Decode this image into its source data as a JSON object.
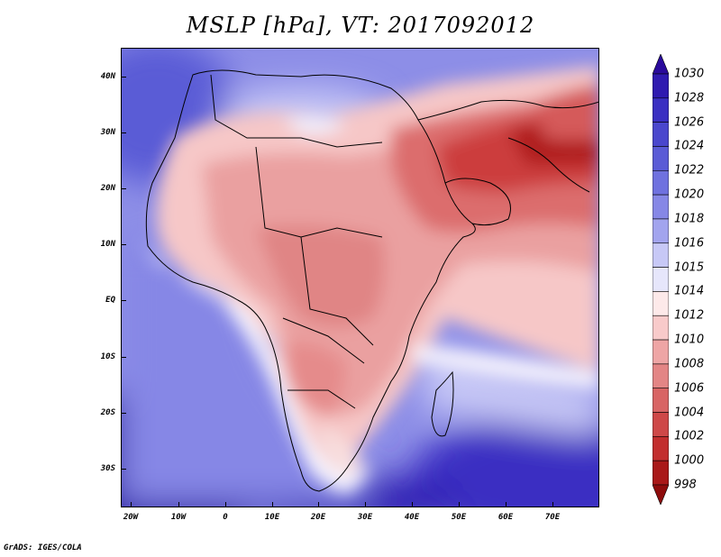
{
  "title": "MSLP [hPa], VT: 2017092012",
  "credit": "GrADS: IGES/COLA",
  "y_axis_labels": [
    "40N",
    "30N",
    "20N",
    "10N",
    "EQ",
    "10S",
    "20S",
    "30S"
  ],
  "x_axis_labels": [
    "20W",
    "10W",
    "0",
    "10E",
    "20E",
    "30E",
    "40E",
    "50E",
    "60E",
    "70E"
  ],
  "colorbar": {
    "levels": [
      "1030",
      "1028",
      "1026",
      "1024",
      "1022",
      "1020",
      "1018",
      "1016",
      "1015",
      "1014",
      "1012",
      "1010",
      "1008",
      "1006",
      "1004",
      "1002",
      "1000",
      "998"
    ],
    "colors": [
      "#2a0a9c",
      "#2f1ab0",
      "#3a2fc2",
      "#4a47cd",
      "#5a5bd6",
      "#6f71df",
      "#8687e6",
      "#a2a4ee",
      "#c7c8f6",
      "#e6e6fb",
      "#fde9e9",
      "#f8caca",
      "#eea5a5",
      "#e38585",
      "#d86464",
      "#ce4848",
      "#c22e2e",
      "#a91818",
      "#8e0c0c"
    ]
  }
}
